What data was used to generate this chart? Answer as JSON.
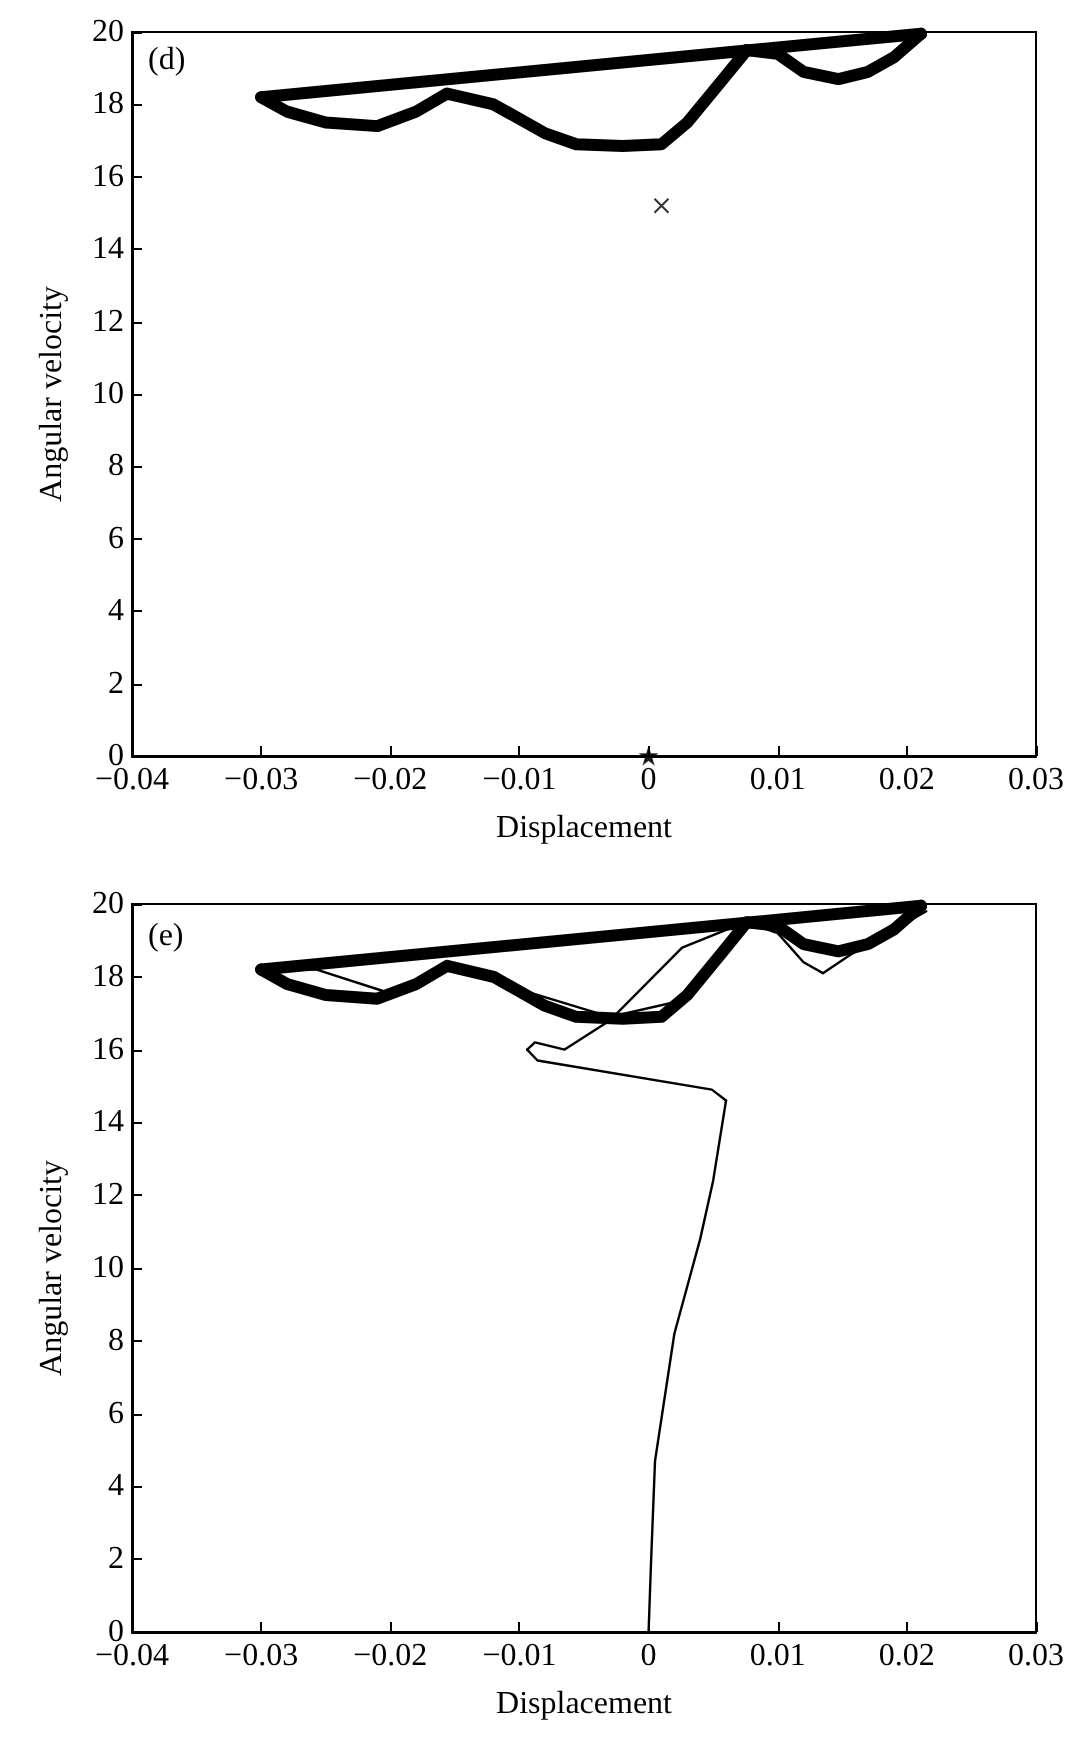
{
  "chart_data": [
    {
      "type": "line",
      "annotations": [
        "(d)"
      ],
      "xlabel": "Displacement",
      "ylabel": "Angular velocity",
      "xlim": [
        -0.04,
        0.03
      ],
      "ylim": [
        0,
        20
      ],
      "xticks": [
        {
          "value": -0.04,
          "label": "−0.04"
        },
        {
          "value": -0.03,
          "label": "−0.03"
        },
        {
          "value": -0.02,
          "label": "−0.02"
        },
        {
          "value": -0.01,
          "label": "−0.01"
        },
        0,
        {
          "value": 0.01,
          "label": "0.01"
        },
        {
          "value": 0.02,
          "label": "0.02"
        },
        {
          "value": 0.03,
          "label": "0.03"
        }
      ],
      "yticks": [
        0,
        2,
        4,
        6,
        8,
        10,
        12,
        14,
        16,
        18,
        20
      ],
      "series": [
        {
          "color": "#000000",
          "marker": "none",
          "x": [
            -0.03,
            -0.028,
            -0.025,
            -0.021,
            -0.018,
            -0.0156,
            -0.012,
            -0.008,
            -0.0056,
            -0.002,
            0.001,
            0.003,
            0.006,
            0.0076,
            0.01,
            0.012,
            0.0147,
            0.017,
            0.019,
            0.0211
          ],
          "values": [
            18.2,
            17.8,
            17.5,
            17.4,
            17.8,
            18.3,
            18.0,
            17.2,
            16.9,
            16.85,
            16.9,
            17.5,
            18.8,
            19.5,
            19.4,
            18.9,
            18.7,
            18.9,
            19.3,
            19.95
          ]
        },
        {
          "color": "#000000",
          "marker": "none",
          "x": [
            -0.03,
            0.0211
          ],
          "values": [
            18.2,
            19.95
          ]
        },
        {
          "type": "scatter",
          "color": "#000000",
          "marker": "cross",
          "x": [
            0.001
          ],
          "values": [
            15.2
          ]
        },
        {
          "type": "scatter",
          "color": "#000000",
          "marker": "star",
          "x": [
            0
          ],
          "values": [
            0
          ]
        }
      ]
    },
    {
      "type": "line",
      "annotations": [
        "(e)"
      ],
      "xlabel": "Displacement",
      "ylabel": "Angular velocity",
      "xlim": [
        -0.04,
        0.03
      ],
      "ylim": [
        0,
        20
      ],
      "xticks": [
        {
          "value": -0.04,
          "label": "−0.04"
        },
        {
          "value": -0.03,
          "label": "−0.03"
        },
        {
          "value": -0.02,
          "label": "−0.02"
        },
        {
          "value": -0.01,
          "label": "−0.01"
        },
        0,
        {
          "value": 0.01,
          "label": "0.01"
        },
        {
          "value": 0.02,
          "label": "0.02"
        },
        {
          "value": 0.03,
          "label": "0.03"
        }
      ],
      "yticks": [
        0,
        2,
        4,
        6,
        8,
        10,
        12,
        14,
        16,
        18,
        20
      ],
      "series": [
        {
          "color": "#000000",
          "marker": "none",
          "x": [
            -0.03,
            -0.028,
            -0.025,
            -0.021,
            -0.018,
            -0.0156,
            -0.012,
            -0.008,
            -0.0056,
            -0.002,
            0.001,
            0.003,
            0.006,
            0.0076,
            0.01,
            0.012,
            0.0147,
            0.017,
            0.019,
            0.0211
          ],
          "values": [
            18.2,
            17.8,
            17.5,
            17.4,
            17.8,
            18.3,
            18.0,
            17.2,
            16.9,
            16.85,
            16.9,
            17.5,
            18.8,
            19.5,
            19.4,
            18.9,
            18.7,
            18.9,
            19.3,
            19.95
          ]
        },
        {
          "color": "#000000",
          "marker": "none",
          "x": [
            -0.03,
            0.0211
          ],
          "values": [
            18.2,
            19.95
          ]
        },
        {
          "color": "#000000",
          "marker": "none",
          "x": [
            0,
            0.0002,
            0.0005,
            0.002,
            0.004,
            0.005,
            0.006
          ],
          "values": [
            0,
            2,
            4.7,
            8.2,
            10.8,
            12.4,
            14.6
          ]
        },
        {
          "color": "#000000",
          "marker": "none",
          "x": [
            0.006,
            0.0049,
            -0.0086,
            -0.0094
          ],
          "values": [
            14.6,
            14.9,
            15.7,
            16.0
          ]
        },
        {
          "color": "#000000",
          "marker": "none",
          "x": [
            -0.0094,
            -0.0088,
            -0.0065,
            -0.003,
            0.0026,
            0.0075,
            0.01,
            0.012,
            0.0135,
            0.0156,
            0.0215
          ],
          "values": [
            16.0,
            16.2,
            16.0,
            16.8,
            18.8,
            19.5,
            19.2,
            18.4,
            18.1,
            18.6,
            19.8
          ]
        },
        {
          "color": "#000000",
          "marker": "none",
          "x": [
            -0.03,
            -0.0257,
            -0.0196,
            -0.015,
            -0.0095,
            -0.003,
            0.002,
            0.006,
            0.0076
          ],
          "values": [
            18.2,
            18.2,
            17.5,
            18.3,
            17.6,
            16.9,
            17.3,
            18.8,
            19.5
          ]
        }
      ]
    }
  ]
}
